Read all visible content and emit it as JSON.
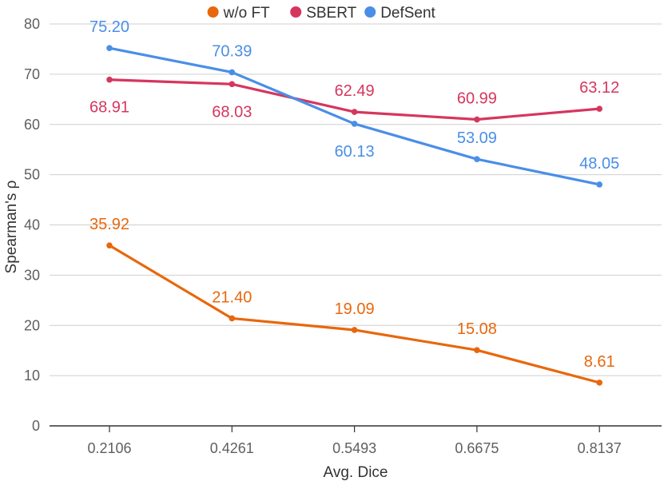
{
  "chart_data": {
    "type": "line",
    "title": "",
    "xlabel": "Avg. Dice",
    "ylabel": "Spearman's ρ",
    "categories": [
      "0.2106",
      "0.4261",
      "0.5493",
      "0.6675",
      "0.8137"
    ],
    "ylim": [
      0,
      80
    ],
    "yticks": [
      "0",
      "10",
      "20",
      "30",
      "40",
      "50",
      "60",
      "70",
      "80"
    ],
    "grid": true,
    "legend_position": "top-center",
    "series": [
      {
        "name": "w/o FT",
        "color": "#e8670c",
        "values": [
          35.92,
          21.4,
          19.09,
          15.08,
          8.61
        ],
        "labels": [
          "35.92",
          "21.40",
          "19.09",
          "15.08",
          "8.61"
        ],
        "label_side": [
          "above",
          "above",
          "above",
          "above",
          "above"
        ]
      },
      {
        "name": "SBERT",
        "color": "#d6365e",
        "values": [
          68.91,
          68.03,
          62.49,
          60.99,
          63.12
        ],
        "labels": [
          "68.91",
          "68.03",
          "62.49",
          "60.99",
          "63.12"
        ],
        "label_side": [
          "below",
          "below",
          "above",
          "above",
          "above"
        ]
      },
      {
        "name": "DefSent",
        "color": "#4a8ee8",
        "values": [
          75.2,
          70.39,
          60.13,
          53.09,
          48.05
        ],
        "labels": [
          "75.20",
          "70.39",
          "60.13",
          "53.09",
          "48.05"
        ],
        "label_side": [
          "above",
          "above",
          "below",
          "above",
          "above"
        ]
      }
    ]
  }
}
